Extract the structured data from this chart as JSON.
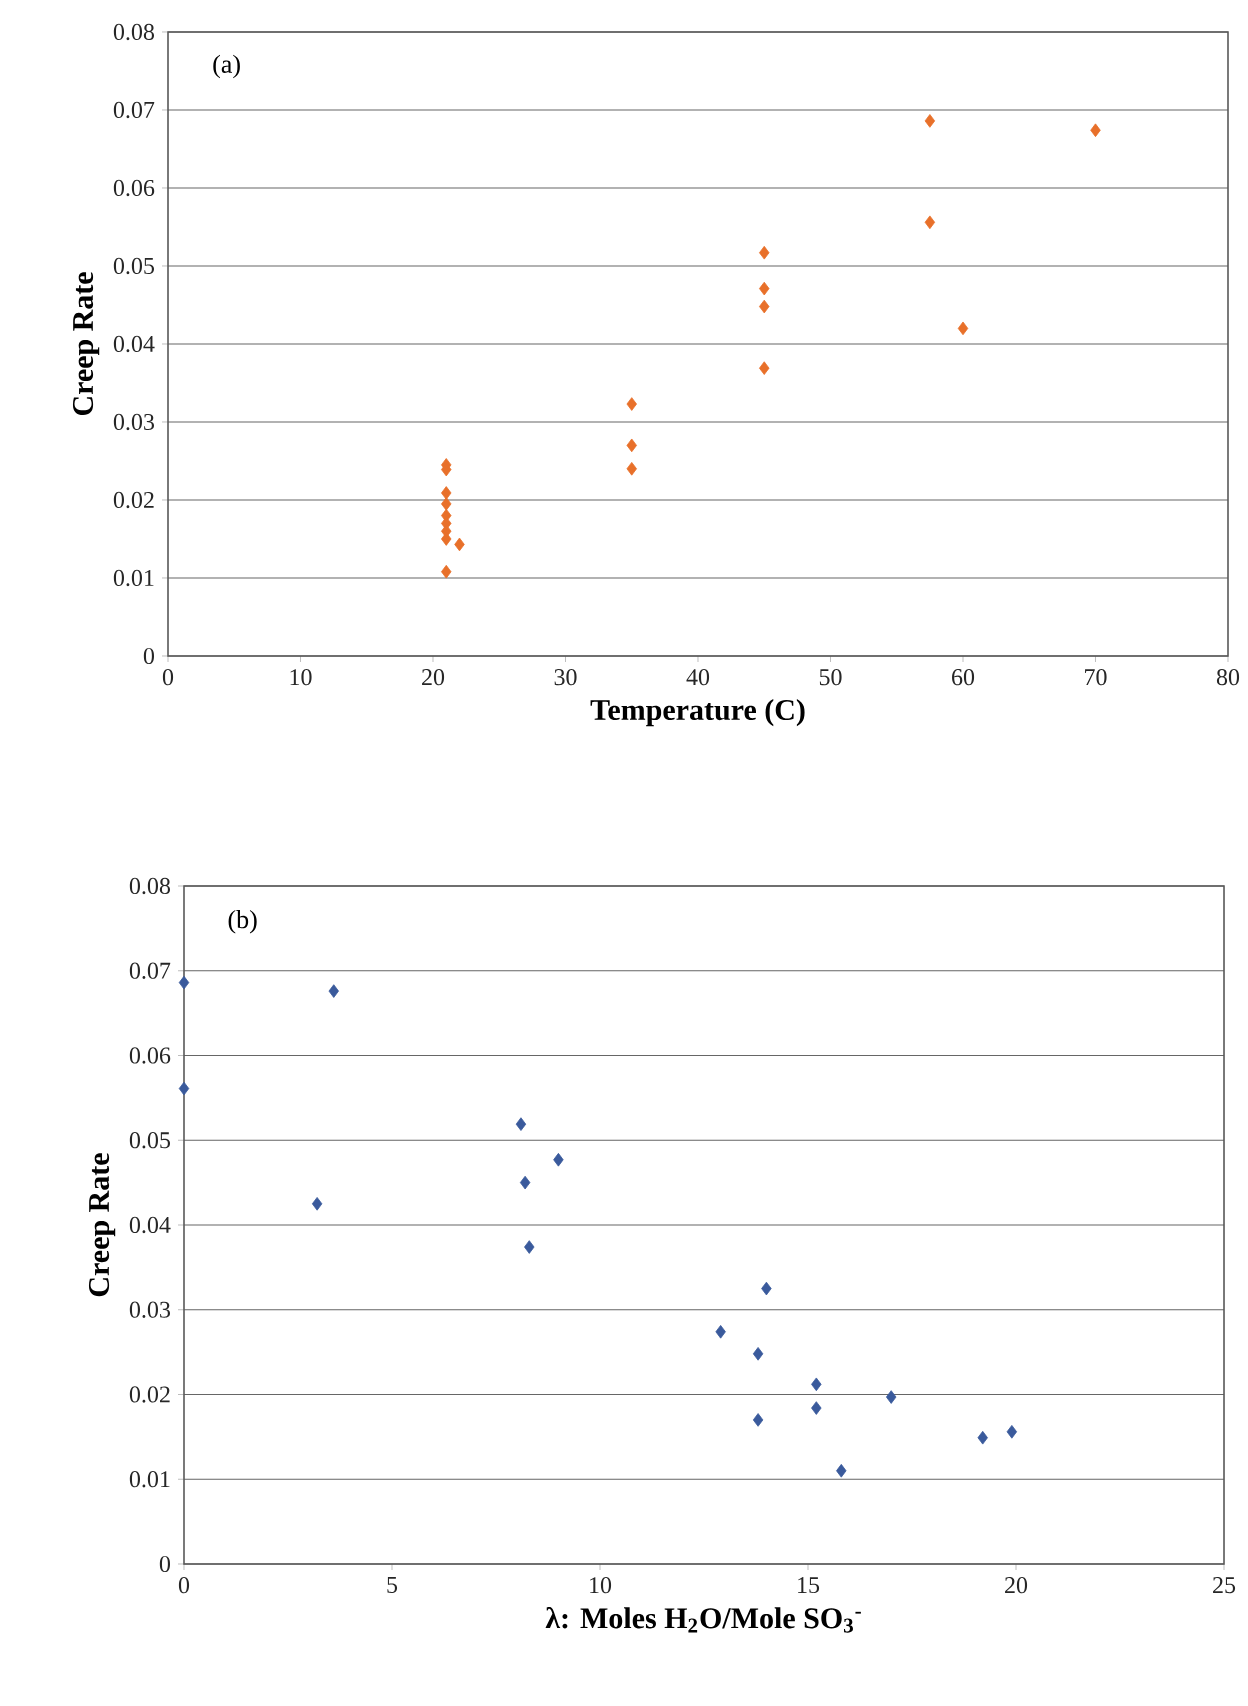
{
  "chart_data": [
    {
      "type": "scatter",
      "xlabel": "Temperature (C)",
      "ylabel": "Creep Rate",
      "annotations": [
        "(a)"
      ],
      "color": "#e8702a",
      "marker": "diamond",
      "grid": "y",
      "x": [
        21,
        21,
        21,
        21,
        21,
        21,
        21,
        21,
        22,
        21,
        35,
        35,
        35,
        45,
        45,
        45,
        45,
        57.5,
        57.5,
        60,
        70
      ],
      "values": [
        0.0245,
        0.0239,
        0.0209,
        0.0195,
        0.018,
        0.017,
        0.016,
        0.015,
        0.0143,
        0.0108,
        0.0323,
        0.027,
        0.024,
        0.0517,
        0.0471,
        0.0448,
        0.0369,
        0.0686,
        0.0556,
        0.042,
        0.0674
      ],
      "xlim": [
        0,
        80
      ],
      "xticks": [
        0,
        10,
        20,
        30,
        40,
        50,
        60,
        70,
        80
      ],
      "ylim": [
        0,
        0.08
      ],
      "yticks": [
        0,
        0.01,
        0.02,
        0.03,
        0.04,
        0.05,
        0.06,
        0.07,
        0.08
      ]
    },
    {
      "type": "scatter",
      "xlabel": "λ: Moles H$_{2}$O/Mole SO$_{3}$$^{-}$",
      "ylabel": "Creep Rate",
      "annotations": [
        "(b)"
      ],
      "color": "#3a5a9c",
      "marker": "diamond",
      "grid": "y",
      "x": [
        0,
        0,
        3.6,
        3.2,
        8.1,
        8.2,
        9.0,
        8.3,
        14.0,
        12.9,
        13.8,
        15.2,
        15.2,
        13.8,
        17.0,
        19.2,
        19.9,
        15.8
      ],
      "values": [
        0.0686,
        0.0561,
        0.0676,
        0.0425,
        0.0519,
        0.045,
        0.0477,
        0.0374,
        0.0325,
        0.0274,
        0.0248,
        0.0212,
        0.0184,
        0.017,
        0.0197,
        0.0149,
        0.0156,
        0.011
      ],
      "xlim": [
        0,
        25
      ],
      "xticks": [
        0,
        5,
        10,
        15,
        20,
        25
      ],
      "ylim": [
        0,
        0.08
      ],
      "yticks": [
        0,
        0.01,
        0.02,
        0.03,
        0.04,
        0.05,
        0.06,
        0.07,
        0.08
      ]
    }
  ]
}
